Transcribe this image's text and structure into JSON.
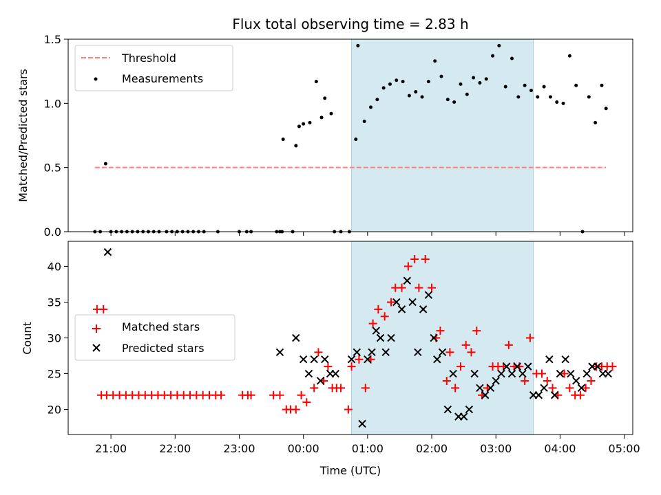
{
  "chart_data": [
    {
      "type": "scatter",
      "panel": "top",
      "title": "Flux total observing time = 2.83 h",
      "ylabel": "Matched/Predicted stars",
      "xlabel": "",
      "ylim": [
        0,
        1.5
      ],
      "yticks": [
        "0.0",
        "0.5",
        "1.0",
        "1.5"
      ],
      "shaded_interval": [
        "00:45",
        "03:35"
      ],
      "shade_color": "#d4eaf0",
      "legend_position": "upper-left",
      "series": [
        {
          "name": "Threshold",
          "kind": "dashed-line",
          "color": "#ff7f7f",
          "x": [
            "20:45",
            "04:43"
          ],
          "y": [
            0.5,
            0.5
          ]
        },
        {
          "name": "Measurements",
          "kind": "points",
          "color": "#000000",
          "x": [
            "20:45",
            "20:50",
            "20:55",
            "21:00",
            "21:05",
            "21:10",
            "21:15",
            "21:20",
            "21:25",
            "21:30",
            "21:35",
            "21:40",
            "21:45",
            "21:52",
            "21:57",
            "22:02",
            "22:07",
            "22:12",
            "22:17",
            "22:22",
            "22:27",
            "22:40",
            "23:00",
            "23:07",
            "23:11",
            "23:35",
            "23:38",
            "23:40",
            "23:50",
            "23:41",
            "23:53",
            "23:56",
            "24:00",
            "24:06",
            "24:12",
            "24:17",
            "24:20",
            "24:26",
            "24:29",
            "24:35",
            "24:43",
            "24:49",
            "24:51",
            "24:57",
            "25:03",
            "25:09",
            "25:15",
            "25:21",
            "25:27",
            "25:33",
            "25:39",
            "25:45",
            "25:51",
            "25:57",
            "26:03",
            "26:09",
            "26:15",
            "26:21",
            "26:27",
            "26:33",
            "26:39",
            "26:45",
            "26:51",
            "26:57",
            "27:03",
            "27:09",
            "27:15",
            "27:21",
            "27:27",
            "27:33",
            "27:39",
            "27:45",
            "27:51",
            "27:57",
            "28:03",
            "28:09",
            "28:15",
            "28:21",
            "28:27",
            "28:33",
            "28:39",
            "28:43"
          ],
          "y": [
            0,
            0,
            0.53,
            0,
            0,
            0,
            0,
            0,
            0,
            0,
            0,
            0,
            0,
            0,
            0,
            0,
            0,
            0,
            0,
            0,
            0,
            0,
            0,
            0,
            0,
            0,
            0,
            0,
            0,
            0.72,
            0.67,
            0.82,
            0.84,
            0.85,
            1.17,
            0.89,
            1.04,
            0.92,
            0,
            0,
            0,
            0.72,
            1.45,
            0.86,
            0.97,
            1.03,
            1.12,
            1.15,
            1.18,
            1.17,
            1.06,
            1.09,
            1.05,
            1.17,
            1.33,
            1.21,
            1.03,
            1.01,
            1.15,
            1.07,
            1.2,
            1.16,
            1.19,
            1.37,
            1.45,
            1.13,
            1.35,
            1.05,
            1.14,
            1.1,
            1.05,
            1.13,
            1.05,
            1.01,
            1.0,
            1.37,
            1.14,
            0,
            1.05,
            0.85,
            1.14,
            0.96
          ]
        }
      ]
    },
    {
      "type": "scatter",
      "panel": "bottom",
      "title": "",
      "xlabel": "Time (UTC)",
      "ylabel": "Count",
      "ylim": [
        16.5,
        43.5
      ],
      "yticks": [
        "20",
        "25",
        "30",
        "35",
        "40"
      ],
      "xlim": [
        "20:20",
        "05:08"
      ],
      "xticks": [
        "21:00",
        "22:00",
        "23:00",
        "00:00",
        "01:00",
        "02:00",
        "03:00",
        "04:00",
        "05:00"
      ],
      "shaded_interval": [
        "00:45",
        "03:35"
      ],
      "shade_color": "#d4eaf0",
      "legend_position": "center-left",
      "series": [
        {
          "name": "Matched stars",
          "marker": "plus",
          "color": "#ff0000",
          "x": [
            "20:47",
            "20:53",
            "20:51",
            "20:56",
            "21:02",
            "21:08",
            "21:14",
            "21:20",
            "21:26",
            "21:32",
            "21:38",
            "21:44",
            "21:50",
            "21:56",
            "22:02",
            "22:08",
            "22:14",
            "22:20",
            "22:26",
            "22:32",
            "22:38",
            "22:43",
            "23:03",
            "23:08",
            "23:11",
            "23:32",
            "23:38",
            "23:44",
            "23:48",
            "23:53",
            "23:58",
            "24:03",
            "24:10",
            "24:14",
            "24:19",
            "24:23",
            "24:27",
            "24:31",
            "24:35",
            "24:42",
            "24:45",
            "24:52",
            "24:58",
            "25:03",
            "25:05",
            "25:10",
            "25:16",
            "25:22",
            "25:26",
            "25:32",
            "25:38",
            "25:44",
            "25:48",
            "25:54",
            "26:00",
            "26:04",
            "26:08",
            "26:14",
            "26:17",
            "26:22",
            "26:27",
            "26:32",
            "26:37",
            "26:42",
            "26:47",
            "26:52",
            "26:57",
            "27:02",
            "27:07",
            "27:12",
            "27:17",
            "27:22",
            "27:27",
            "27:32",
            "27:38",
            "27:43",
            "27:48",
            "27:53",
            "27:58",
            "28:04",
            "28:09",
            "28:14",
            "28:19",
            "28:24",
            "28:29",
            "28:34",
            "28:39",
            "28:44",
            "28:49"
          ],
          "y": [
            34,
            34,
            22,
            22,
            22,
            22,
            22,
            22,
            22,
            22,
            22,
            22,
            22,
            22,
            22,
            22,
            22,
            22,
            22,
            22,
            22,
            22,
            22,
            22,
            22,
            22,
            22,
            20,
            20,
            20,
            22,
            21,
            23,
            28,
            24,
            26,
            23,
            23,
            23,
            20,
            26,
            27,
            23,
            27,
            32,
            34,
            33,
            35,
            37,
            37,
            40,
            41,
            37,
            41,
            37,
            30,
            31,
            24,
            28,
            23,
            26,
            29,
            28,
            31,
            22,
            23,
            26,
            26,
            26,
            29,
            26,
            26,
            24,
            30,
            25,
            25,
            24,
            23,
            22,
            25,
            23,
            22,
            22,
            23,
            24,
            26,
            26,
            26,
            26
          ]
        },
        {
          "name": "Predicted stars",
          "marker": "x",
          "color": "#000000",
          "x": [
            "20:57",
            "23:38",
            "23:53",
            "24:00",
            "24:05",
            "24:10",
            "24:16",
            "24:20",
            "24:25",
            "24:30",
            "24:50",
            "24:55",
            "25:00",
            "25:04",
            "25:08",
            "25:12",
            "25:17",
            "25:22",
            "25:27",
            "25:32",
            "25:37",
            "25:42",
            "25:47",
            "25:52",
            "25:57",
            "26:02",
            "26:05",
            "26:10",
            "26:15",
            "26:20",
            "26:25",
            "26:30",
            "26:35",
            "26:40",
            "26:45",
            "26:50",
            "26:55",
            "27:00",
            "27:05",
            "27:10",
            "27:15",
            "27:20",
            "27:25",
            "27:30",
            "27:35",
            "27:40",
            "27:45",
            "27:50",
            "27:55",
            "28:00",
            "28:05",
            "28:10",
            "28:15",
            "28:20",
            "28:25",
            "28:30",
            "28:35",
            "28:40",
            "28:45",
            "24:45"
          ],
          "y": [
            42,
            28,
            30,
            27,
            25,
            27,
            24,
            27,
            25,
            25,
            28,
            18,
            27,
            28,
            31,
            30,
            28,
            30,
            35,
            34,
            38,
            35,
            28,
            34,
            36,
            30,
            27,
            28,
            20,
            25,
            19,
            19,
            20,
            25,
            23,
            22,
            23,
            24,
            25,
            26,
            25,
            26,
            25,
            26,
            22,
            22,
            23,
            27,
            22,
            25,
            27,
            25,
            24,
            23,
            25,
            26,
            26,
            25,
            25,
            27
          ]
        }
      ]
    }
  ]
}
